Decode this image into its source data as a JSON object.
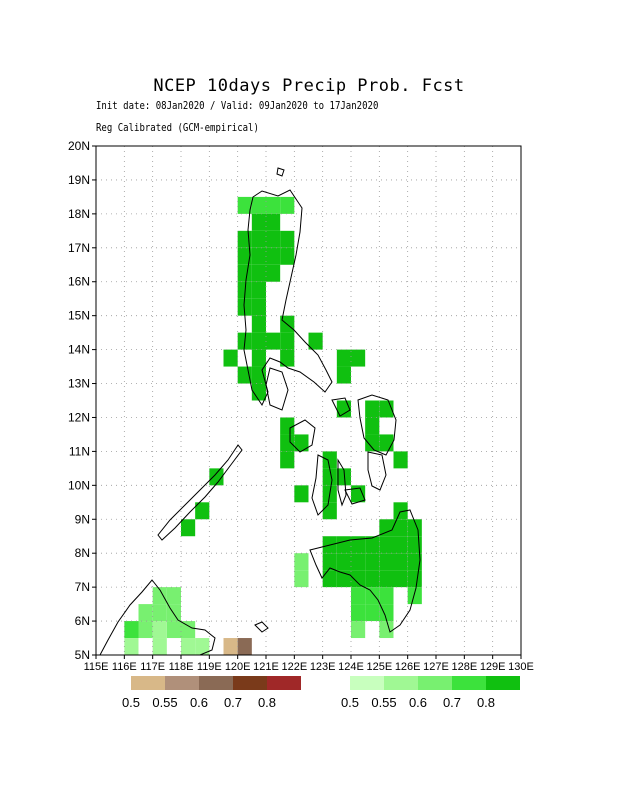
{
  "header": {
    "title": "NCEP 10days Precip Prob. Fcst",
    "subtitle": "Init date: 08Jan2020 / Valid: 09Jan2020 to 17Jan2020",
    "note": "Reg Calibrated (GCM-empirical)"
  },
  "axes": {
    "lat_labels": [
      "5N",
      "6N",
      "7N",
      "8N",
      "9N",
      "10N",
      "11N",
      "12N",
      "13N",
      "14N",
      "15N",
      "16N",
      "17N",
      "18N",
      "19N",
      "20N"
    ],
    "lon_labels": [
      "115E",
      "116E",
      "117E",
      "118E",
      "119E",
      "120E",
      "121E",
      "122E",
      "123E",
      "124E",
      "125E",
      "126E",
      "127E",
      "128E",
      "129E",
      "130E"
    ],
    "lat_range": [
      5,
      20
    ],
    "lon_range": [
      115,
      130
    ]
  },
  "legend_dry": {
    "colors": [
      "#d8b888",
      "#b0907a",
      "#8a6a55",
      "#7a3a1a",
      "#a02828"
    ],
    "labels": [
      "0.5",
      "0.55",
      "0.6",
      "0.7",
      "0.8"
    ]
  },
  "legend_wet": {
    "colors": [
      "#c8ffbe",
      "#a0f894",
      "#78f070",
      "#3ce23c",
      "#10c010"
    ],
    "labels": [
      "0.5",
      "0.55",
      "0.6",
      "0.7",
      "0.8"
    ]
  },
  "chart_data": {
    "type": "heatmap",
    "title": "NCEP 10days Precip Prob. Fcst",
    "x_range": [
      115,
      130
    ],
    "y_range": [
      5,
      20
    ],
    "cell_size_deg": 0.5,
    "grid": true,
    "wet_cells": [
      [
        120.0,
        18.0,
        3
      ],
      [
        120.5,
        18.0,
        3
      ],
      [
        121.0,
        18.0,
        3
      ],
      [
        121.5,
        18.0,
        3
      ],
      [
        120.5,
        17.5,
        4
      ],
      [
        121.0,
        17.5,
        4
      ],
      [
        120.0,
        17.0,
        4
      ],
      [
        120.5,
        17.0,
        4
      ],
      [
        121.0,
        17.0,
        4
      ],
      [
        121.5,
        17.0,
        4
      ],
      [
        120.0,
        16.5,
        4
      ],
      [
        120.5,
        16.5,
        4
      ],
      [
        121.0,
        16.5,
        4
      ],
      [
        121.5,
        16.5,
        4
      ],
      [
        120.0,
        16.0,
        4
      ],
      [
        120.5,
        16.0,
        4
      ],
      [
        121.0,
        16.0,
        4
      ],
      [
        120.0,
        15.5,
        4
      ],
      [
        120.5,
        15.5,
        4
      ],
      [
        120.0,
        15.0,
        4
      ],
      [
        120.5,
        15.0,
        4
      ],
      [
        120.5,
        14.5,
        4
      ],
      [
        121.5,
        14.5,
        4
      ],
      [
        120.0,
        14.0,
        4
      ],
      [
        120.5,
        14.0,
        4
      ],
      [
        121.0,
        14.0,
        4
      ],
      [
        121.5,
        14.0,
        4
      ],
      [
        122.5,
        14.0,
        4
      ],
      [
        119.5,
        13.5,
        4
      ],
      [
        120.5,
        13.5,
        4
      ],
      [
        121.5,
        13.5,
        4
      ],
      [
        123.5,
        13.5,
        4
      ],
      [
        124.0,
        13.5,
        4
      ],
      [
        120.0,
        13.0,
        4
      ],
      [
        120.5,
        13.0,
        4
      ],
      [
        123.5,
        13.0,
        4
      ],
      [
        120.5,
        12.5,
        4
      ],
      [
        123.5,
        12.0,
        4
      ],
      [
        124.5,
        12.0,
        4
      ],
      [
        125.0,
        12.0,
        4
      ],
      [
        121.5,
        11.5,
        4
      ],
      [
        124.5,
        11.5,
        4
      ],
      [
        121.5,
        11.0,
        4
      ],
      [
        122.0,
        11.0,
        4
      ],
      [
        124.5,
        11.0,
        4
      ],
      [
        125.0,
        11.0,
        4
      ],
      [
        121.5,
        10.5,
        4
      ],
      [
        123.0,
        10.5,
        4
      ],
      [
        125.5,
        10.5,
        4
      ],
      [
        119.0,
        10.0,
        4
      ],
      [
        123.0,
        10.0,
        4
      ],
      [
        123.5,
        10.0,
        4
      ],
      [
        122.0,
        9.5,
        4
      ],
      [
        123.0,
        9.5,
        4
      ],
      [
        124.0,
        9.5,
        4
      ],
      [
        118.5,
        9.0,
        4
      ],
      [
        123.0,
        9.0,
        4
      ],
      [
        125.5,
        9.0,
        4
      ],
      [
        118.0,
        8.5,
        4
      ],
      [
        125.0,
        8.5,
        4
      ],
      [
        125.5,
        8.5,
        4
      ],
      [
        126.0,
        8.5,
        4
      ],
      [
        123.0,
        8.0,
        4
      ],
      [
        123.5,
        8.0,
        4
      ],
      [
        124.0,
        8.0,
        4
      ],
      [
        124.5,
        8.0,
        4
      ],
      [
        125.0,
        8.0,
        4
      ],
      [
        125.5,
        8.0,
        4
      ],
      [
        126.0,
        8.0,
        4
      ],
      [
        123.0,
        7.5,
        4
      ],
      [
        123.5,
        7.5,
        4
      ],
      [
        124.0,
        7.5,
        4
      ],
      [
        124.5,
        7.5,
        4
      ],
      [
        125.0,
        7.5,
        4
      ],
      [
        125.5,
        7.5,
        4
      ],
      [
        126.0,
        7.5,
        4
      ],
      [
        122.0,
        7.5,
        2
      ],
      [
        123.0,
        7.0,
        4
      ],
      [
        123.5,
        7.0,
        4
      ],
      [
        124.0,
        7.0,
        4
      ],
      [
        124.5,
        7.0,
        4
      ],
      [
        125.0,
        7.0,
        4
      ],
      [
        125.5,
        7.0,
        4
      ],
      [
        126.0,
        7.0,
        4
      ],
      [
        122.0,
        7.0,
        2
      ],
      [
        124.0,
        6.5,
        3
      ],
      [
        124.5,
        6.5,
        3
      ],
      [
        125.0,
        6.5,
        3
      ],
      [
        126.0,
        6.5,
        3
      ],
      [
        124.0,
        6.0,
        3
      ],
      [
        124.5,
        6.0,
        3
      ],
      [
        125.0,
        6.0,
        3
      ],
      [
        124.0,
        5.5,
        2
      ],
      [
        125.0,
        5.5,
        2
      ],
      [
        117.0,
        6.5,
        2
      ],
      [
        117.5,
        6.5,
        2
      ],
      [
        116.5,
        6.0,
        2
      ],
      [
        117.0,
        6.0,
        2
      ],
      [
        117.5,
        6.0,
        2
      ],
      [
        116.5,
        5.5,
        2
      ],
      [
        117.5,
        5.5,
        2
      ],
      [
        118.0,
        5.5,
        2
      ],
      [
        116.0,
        5.5,
        3
      ],
      [
        117.0,
        5.5,
        1
      ],
      [
        116.0,
        5.0,
        1
      ],
      [
        117.0,
        5.0,
        1
      ],
      [
        118.0,
        5.0,
        1
      ],
      [
        118.5,
        5.0,
        1
      ]
    ],
    "dry_cells": [
      [
        119.5,
        5.0,
        0
      ],
      [
        120.0,
        5.0,
        2
      ]
    ]
  }
}
